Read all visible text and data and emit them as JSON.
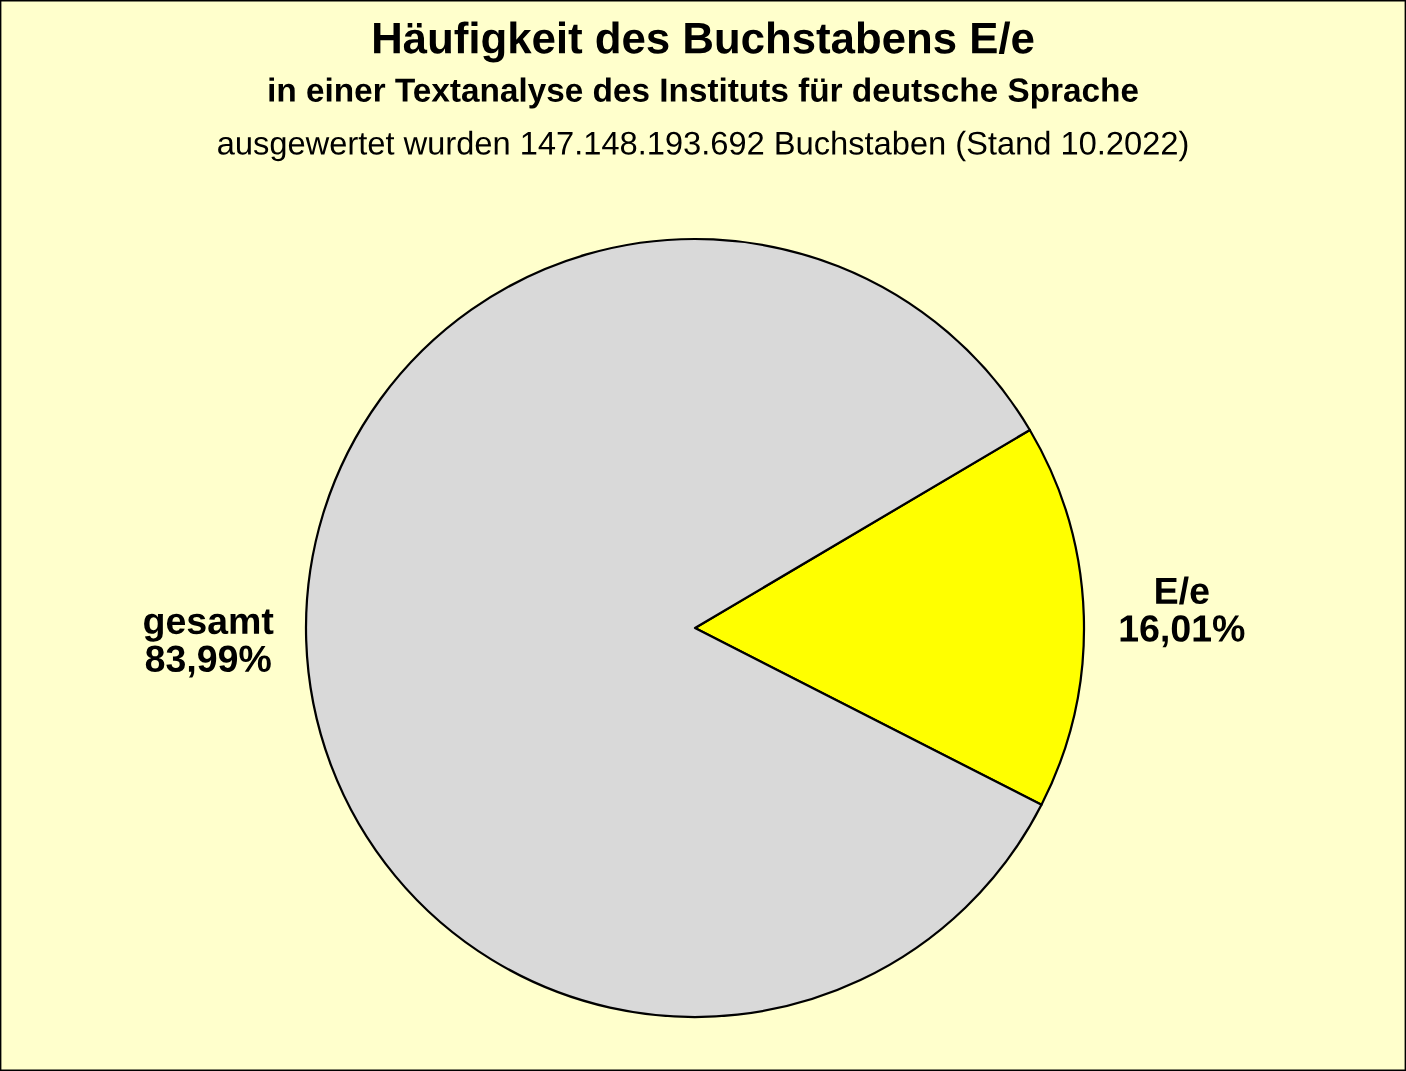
{
  "chart_data": {
    "type": "pie",
    "title": "Häufigkeit des Buchstabens E/e",
    "subtitle": "in einer Textanalyse des Instituts für deutsche Sprache",
    "annotations": [
      "ausgewertet wurden 147.148.193.692 Buchstaben (Stand 10.2022)"
    ],
    "categories": [
      "E/e",
      "gesamt"
    ],
    "values": [
      16.01,
      83.99
    ],
    "colors": [
      "#ffff00",
      "#d9d9d9"
    ],
    "value_labels": [
      "16,01%",
      "83,99%"
    ]
  }
}
